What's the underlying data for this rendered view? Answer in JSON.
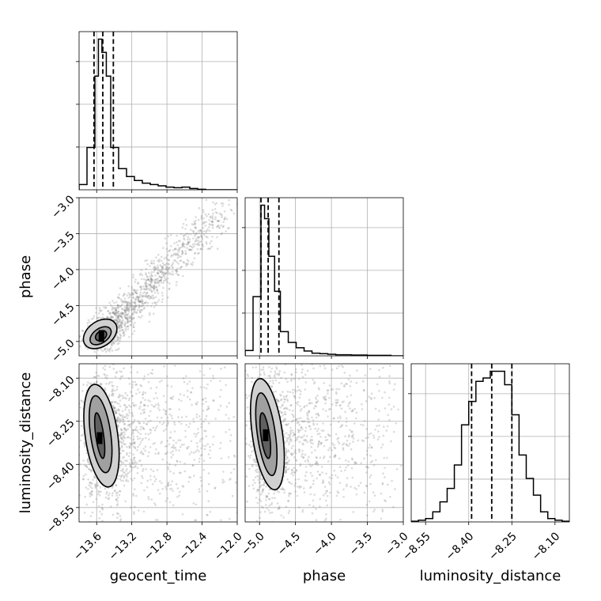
{
  "chart_data": {
    "type": "corner",
    "parameters": [
      {
        "key": "geocent_time",
        "label": "geocent_time",
        "range": [
          -13.8,
          -12.0
        ],
        "ticks": [
          -13.6,
          -13.2,
          -12.8,
          -12.4,
          -12.0
        ],
        "tick_labels": [
          "−13.6",
          "−13.2",
          "−12.8",
          "−12.4",
          "−12.0"
        ],
        "quantiles": [
          -13.63,
          -13.53,
          -13.41
        ]
      },
      {
        "key": "phase",
        "label": "phase",
        "range": [
          -5.2,
          -3.0
        ],
        "ticks": [
          -5.0,
          -4.5,
          -4.0,
          -3.5,
          -3.0
        ],
        "tick_labels": [
          "−5.0",
          "−4.5",
          "−4.0",
          "−3.5",
          "−3.0"
        ],
        "quantiles": [
          -4.98,
          -4.88,
          -4.73
        ]
      },
      {
        "key": "luminosity_distance",
        "label": "luminosity_distance",
        "range": [
          -8.6,
          -8.05
        ],
        "ticks": [
          -8.55,
          -8.4,
          -8.25,
          -8.1
        ],
        "tick_labels": [
          "−8.55",
          "−8.40",
          "−8.25",
          "−8.10"
        ],
        "quantiles": [
          -8.39,
          -8.32,
          -8.25
        ]
      }
    ],
    "histograms": {
      "geocent_time": {
        "bin_edges": [
          -13.8,
          -13.71,
          -13.62,
          -13.58,
          -13.54,
          -13.49,
          -13.44,
          -13.35,
          -13.26,
          -13.17,
          -13.08,
          -12.99,
          -12.9,
          -12.81,
          -12.72,
          -12.63,
          -12.54,
          -12.45,
          -12.36,
          -12.27,
          -12.18,
          -12.09,
          -12.0
        ],
        "counts": [
          0.2,
          1.6,
          4.3,
          5.7,
          5.2,
          4.3,
          1.6,
          0.8,
          0.5,
          0.35,
          0.25,
          0.2,
          0.15,
          0.1,
          0.08,
          0.1,
          0.05,
          0.02,
          0.0,
          0.0,
          0.0,
          0.0
        ]
      },
      "phase": {
        "bin_edges": [
          -5.2,
          -5.09,
          -4.98,
          -4.93,
          -4.87,
          -4.79,
          -4.71,
          -4.6,
          -4.49,
          -4.38,
          -4.27,
          -4.16,
          -4.05,
          -3.94,
          -3.83,
          -3.72,
          -3.61,
          -3.5,
          -3.39,
          -3.28,
          -3.17,
          -3.06,
          -3.0
        ],
        "counts": [
          0.2,
          2.2,
          5.6,
          5.1,
          3.7,
          2.4,
          0.9,
          0.5,
          0.3,
          0.18,
          0.1,
          0.08,
          0.06,
          0.04,
          0.04,
          0.03,
          0.03,
          0.02,
          0.02,
          0.02,
          0.0,
          0.0
        ]
      },
      "luminosity_distance": {
        "bin_edges": [
          -8.6,
          -8.575,
          -8.55,
          -8.525,
          -8.5,
          -8.475,
          -8.45,
          -8.425,
          -8.4,
          -8.375,
          -8.35,
          -8.325,
          -8.3,
          -8.275,
          -8.25,
          -8.225,
          -8.2,
          -8.175,
          -8.15,
          -8.125,
          -8.1,
          -8.075,
          -8.05
        ],
        "counts": [
          0.02,
          0.05,
          0.1,
          0.3,
          0.6,
          1.0,
          1.7,
          2.9,
          3.6,
          4.2,
          4.3,
          4.5,
          4.5,
          4.1,
          3.2,
          2.0,
          1.3,
          0.8,
          0.3,
          0.1,
          0.05,
          0.02
        ]
      }
    },
    "scatter_2d": [
      {
        "x": "geocent_time",
        "y": "phase",
        "center": [
          -13.55,
          -4.93
        ],
        "correlation": "positive",
        "contours_x": [
          [
            -13.62,
            -13.48
          ],
          [
            -13.69,
            -13.42
          ],
          [
            -13.77,
            -13.35
          ]
        ],
        "contours_y": [
          [
            -4.98,
            -4.86
          ],
          [
            -5.02,
            -4.82
          ],
          [
            -5.07,
            -4.72
          ]
        ]
      },
      {
        "x": "geocent_time",
        "y": "luminosity_distance",
        "center": [
          -13.57,
          -8.31
        ],
        "contours_x": [
          [
            -13.61,
            -13.52
          ],
          [
            -13.67,
            -13.44
          ],
          [
            -13.73,
            -13.36
          ]
        ],
        "contours_y": [
          [
            -8.38,
            -8.22
          ],
          [
            -8.43,
            -8.16
          ],
          [
            -8.48,
            -8.12
          ]
        ]
      },
      {
        "x": "phase",
        "y": "luminosity_distance",
        "center": [
          -4.92,
          -8.3
        ],
        "contours_x": [
          [
            -4.98,
            -4.86
          ],
          [
            -5.03,
            -4.78
          ],
          [
            -5.1,
            -4.68
          ]
        ],
        "contours_y": [
          [
            -8.38,
            -8.22
          ],
          [
            -8.44,
            -8.15
          ],
          [
            -8.49,
            -8.1
          ]
        ]
      }
    ],
    "grid": true,
    "colors": {
      "line": "#000000",
      "grid": "#b0b0b0",
      "samples": "#808080",
      "contour_fill": "#404040"
    }
  }
}
